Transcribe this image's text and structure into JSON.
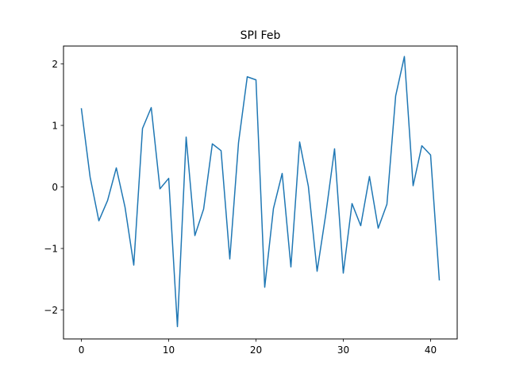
{
  "chart_data": {
    "type": "line",
    "title": "SPI Feb",
    "xlabel": "",
    "ylabel": "",
    "xlim": [
      -2.05,
      43.05
    ],
    "ylim": [
      -2.47,
      2.29
    ],
    "x_ticks": [
      0,
      10,
      20,
      30,
      40
    ],
    "y_ticks": [
      -2,
      -1,
      0,
      1,
      2
    ],
    "x_tick_labels": [
      "0",
      "10",
      "20",
      "30",
      "40"
    ],
    "y_tick_labels": [
      "−2",
      "−1",
      "0",
      "1",
      "2"
    ],
    "grid": false,
    "line_color": "#1f77b4",
    "series": [
      {
        "x": [
          0,
          1,
          2,
          3,
          4,
          5,
          6,
          7,
          8,
          9,
          10,
          11,
          12,
          13,
          14,
          15,
          16,
          17,
          18,
          19,
          20,
          21,
          22,
          23,
          24,
          25,
          26,
          27,
          28,
          29,
          30,
          31,
          32,
          33,
          34,
          35,
          36,
          37,
          38,
          39,
          40,
          41
        ],
        "values": [
          1.27,
          0.16,
          -0.55,
          -0.22,
          0.31,
          -0.33,
          -1.27,
          0.95,
          1.29,
          -0.03,
          0.14,
          -2.27,
          0.81,
          -0.79,
          -0.36,
          0.7,
          0.59,
          -1.17,
          0.72,
          1.79,
          1.74,
          -1.63,
          -0.35,
          0.22,
          -1.3,
          0.73,
          0.01,
          -1.37,
          -0.44,
          0.62,
          -1.4,
          -0.27,
          -0.63,
          0.17,
          -0.67,
          -0.28,
          1.48,
          2.12,
          0.02,
          0.67,
          0.52,
          -1.51
        ]
      }
    ]
  }
}
